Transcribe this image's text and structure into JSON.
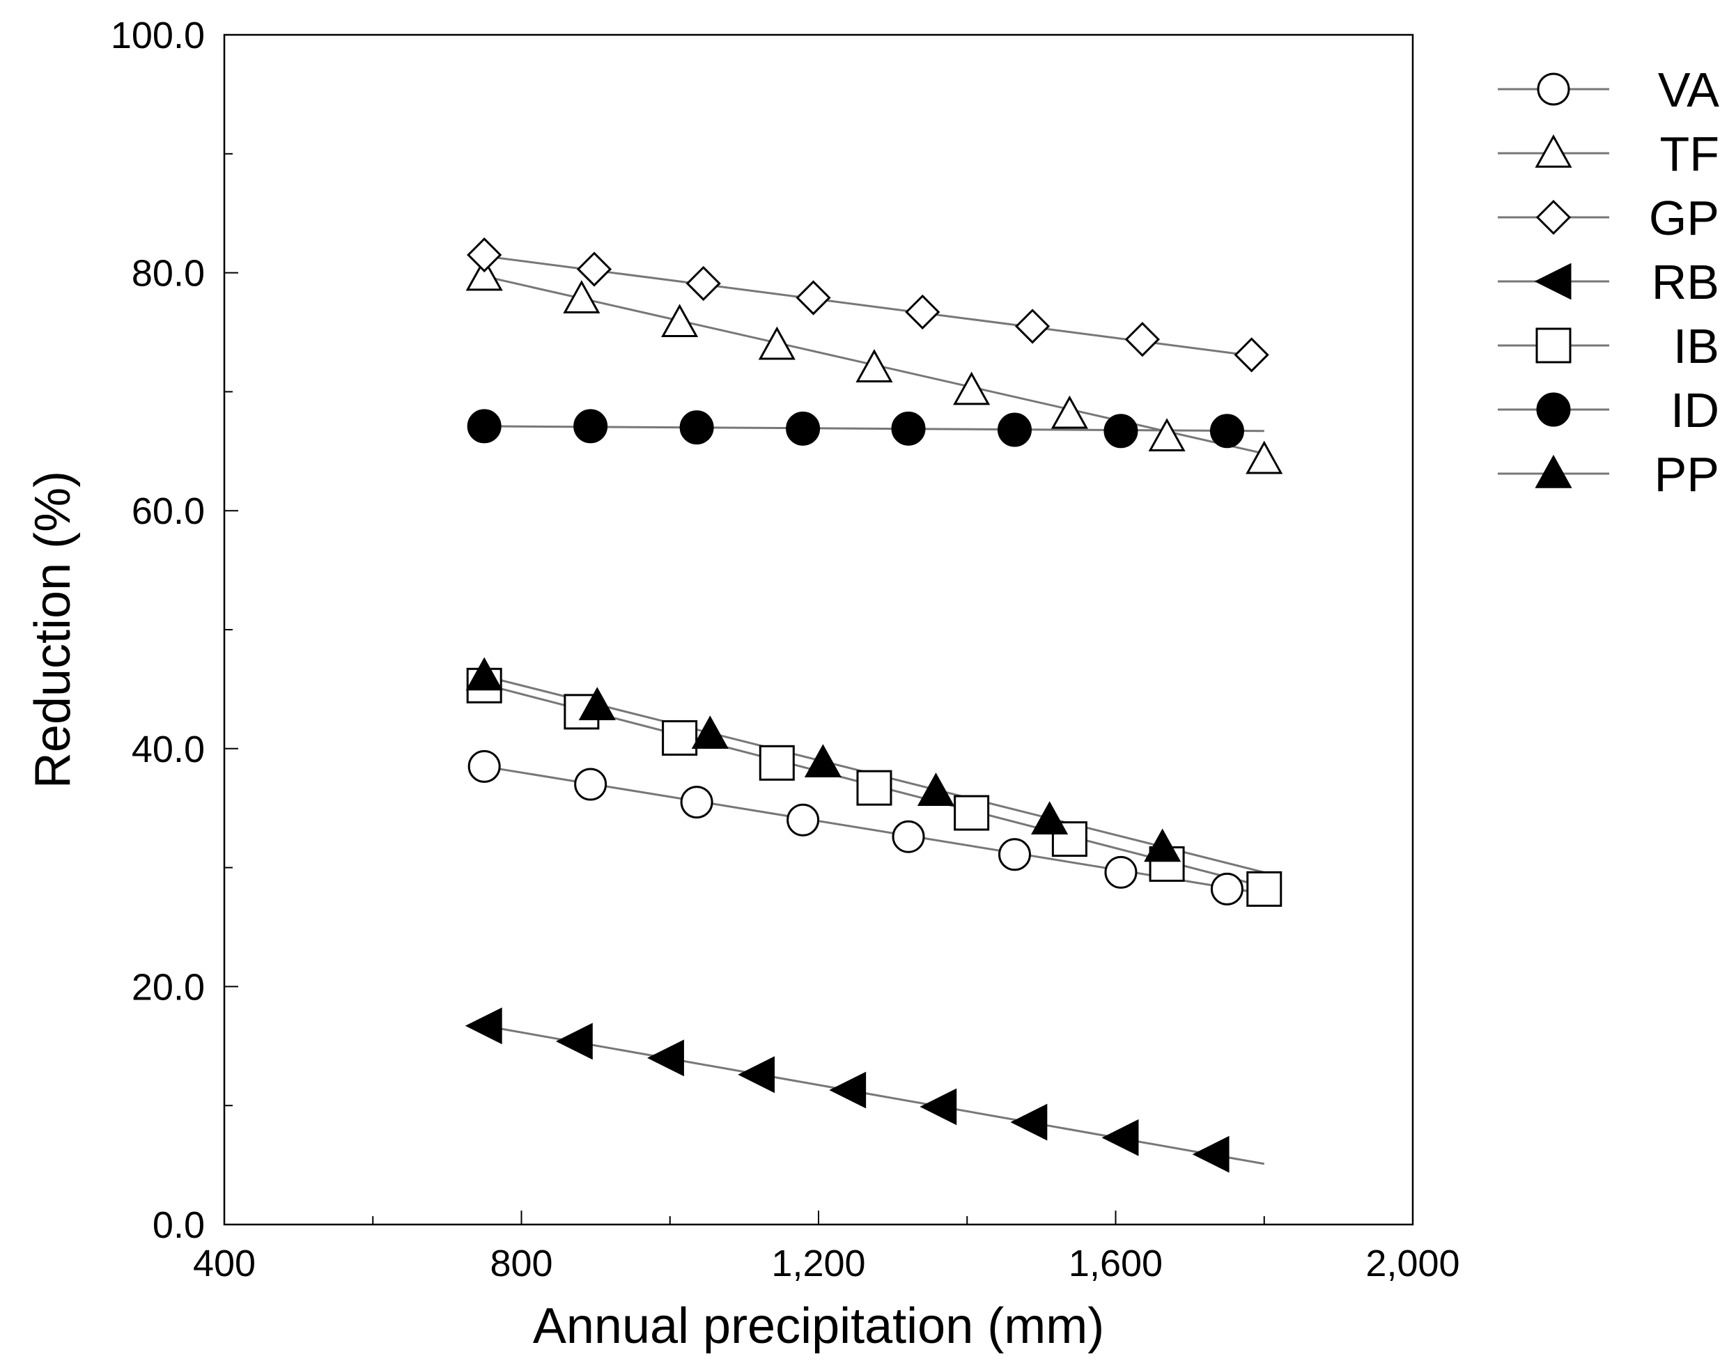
{
  "chart_data": {
    "type": "scatter",
    "title": "",
    "xlabel": "Annual precipitation (mm)",
    "ylabel": "Reduction (%)",
    "xlim": [
      400,
      2000
    ],
    "ylim": [
      0,
      100
    ],
    "x_major_ticks": [
      400,
      800,
      1200,
      1600,
      2000
    ],
    "x_minor_ticks": [
      600,
      1000,
      1400,
      1800
    ],
    "y_major_ticks": [
      0,
      20,
      40,
      60,
      80,
      100
    ],
    "y_minor_ticks": [
      10,
      30,
      50,
      70,
      90
    ],
    "x_tick_labels": [
      "400",
      "800",
      "1,200",
      "1,600",
      "2,000"
    ],
    "y_tick_labels": [
      "0.0",
      "20.0",
      "40.0",
      "60.0",
      "80.0",
      "100.0"
    ],
    "grid": false,
    "legend_position": "right",
    "series": [
      {
        "name": "VA",
        "marker": "circle-open",
        "x": [
          750,
          893,
          1036,
          1179,
          1321,
          1464,
          1607,
          1750
        ],
        "y": [
          38.5,
          37.0,
          35.5,
          34.0,
          32.6,
          31.1,
          29.6,
          28.2
        ],
        "fit": {
          "x": [
            750,
            1800
          ],
          "y": [
            38.5,
            27.8
          ]
        }
      },
      {
        "name": "TF",
        "marker": "triangle-open",
        "x": [
          750,
          881,
          1013,
          1144,
          1275,
          1406,
          1538,
          1669,
          1800
        ],
        "y": [
          79.7,
          77.8,
          75.8,
          73.9,
          72.0,
          70.1,
          68.1,
          66.2,
          64.3
        ],
        "fit": {
          "x": [
            750,
            1800
          ],
          "y": [
            79.7,
            64.8
          ]
        }
      },
      {
        "name": "GP",
        "marker": "diamond-open",
        "x": [
          750,
          898,
          1045,
          1193,
          1340,
          1488,
          1636,
          1783
        ],
        "y": [
          81.5,
          80.3,
          79.1,
          77.9,
          76.7,
          75.5,
          74.4,
          73.1
        ],
        "fit": {
          "x": [
            750,
            1800
          ],
          "y": [
            81.4,
            72.9
          ]
        }
      },
      {
        "name": "RB",
        "marker": "triangle-left-filled",
        "x": [
          750,
          872,
          995,
          1117,
          1240,
          1362,
          1484,
          1607,
          1729
        ],
        "y": [
          16.7,
          15.4,
          14.0,
          12.6,
          11.3,
          9.9,
          8.6,
          7.3,
          5.9
        ],
        "fit": {
          "x": [
            750,
            1800
          ],
          "y": [
            16.7,
            5.1
          ]
        }
      },
      {
        "name": "IB",
        "marker": "square-open",
        "x": [
          750,
          881,
          1013,
          1144,
          1275,
          1406,
          1538,
          1669,
          1800
        ],
        "y": [
          45.3,
          43.1,
          40.9,
          38.8,
          36.7,
          34.6,
          32.4,
          30.3,
          28.2
        ],
        "fit": {
          "x": [
            750,
            1800
          ],
          "y": [
            45.4,
            28.4
          ]
        }
      },
      {
        "name": "ID",
        "marker": "circle-filled",
        "x": [
          750,
          893,
          1036,
          1179,
          1321,
          1464,
          1607,
          1750
        ],
        "y": [
          67.1,
          67.1,
          67.0,
          66.9,
          66.9,
          66.8,
          66.7,
          66.7
        ],
        "fit": {
          "x": [
            750,
            1800
          ],
          "y": [
            67.1,
            66.7
          ]
        }
      },
      {
        "name": "PP",
        "marker": "triangle-up-filled",
        "x": [
          750,
          902,
          1054,
          1206,
          1358,
          1511,
          1663
        ],
        "y": [
          46.1,
          43.6,
          41.2,
          38.8,
          36.4,
          34.0,
          31.7
        ],
        "fit": {
          "x": [
            750,
            1800
          ],
          "y": [
            46.1,
            29.6
          ]
        }
      }
    ]
  }
}
